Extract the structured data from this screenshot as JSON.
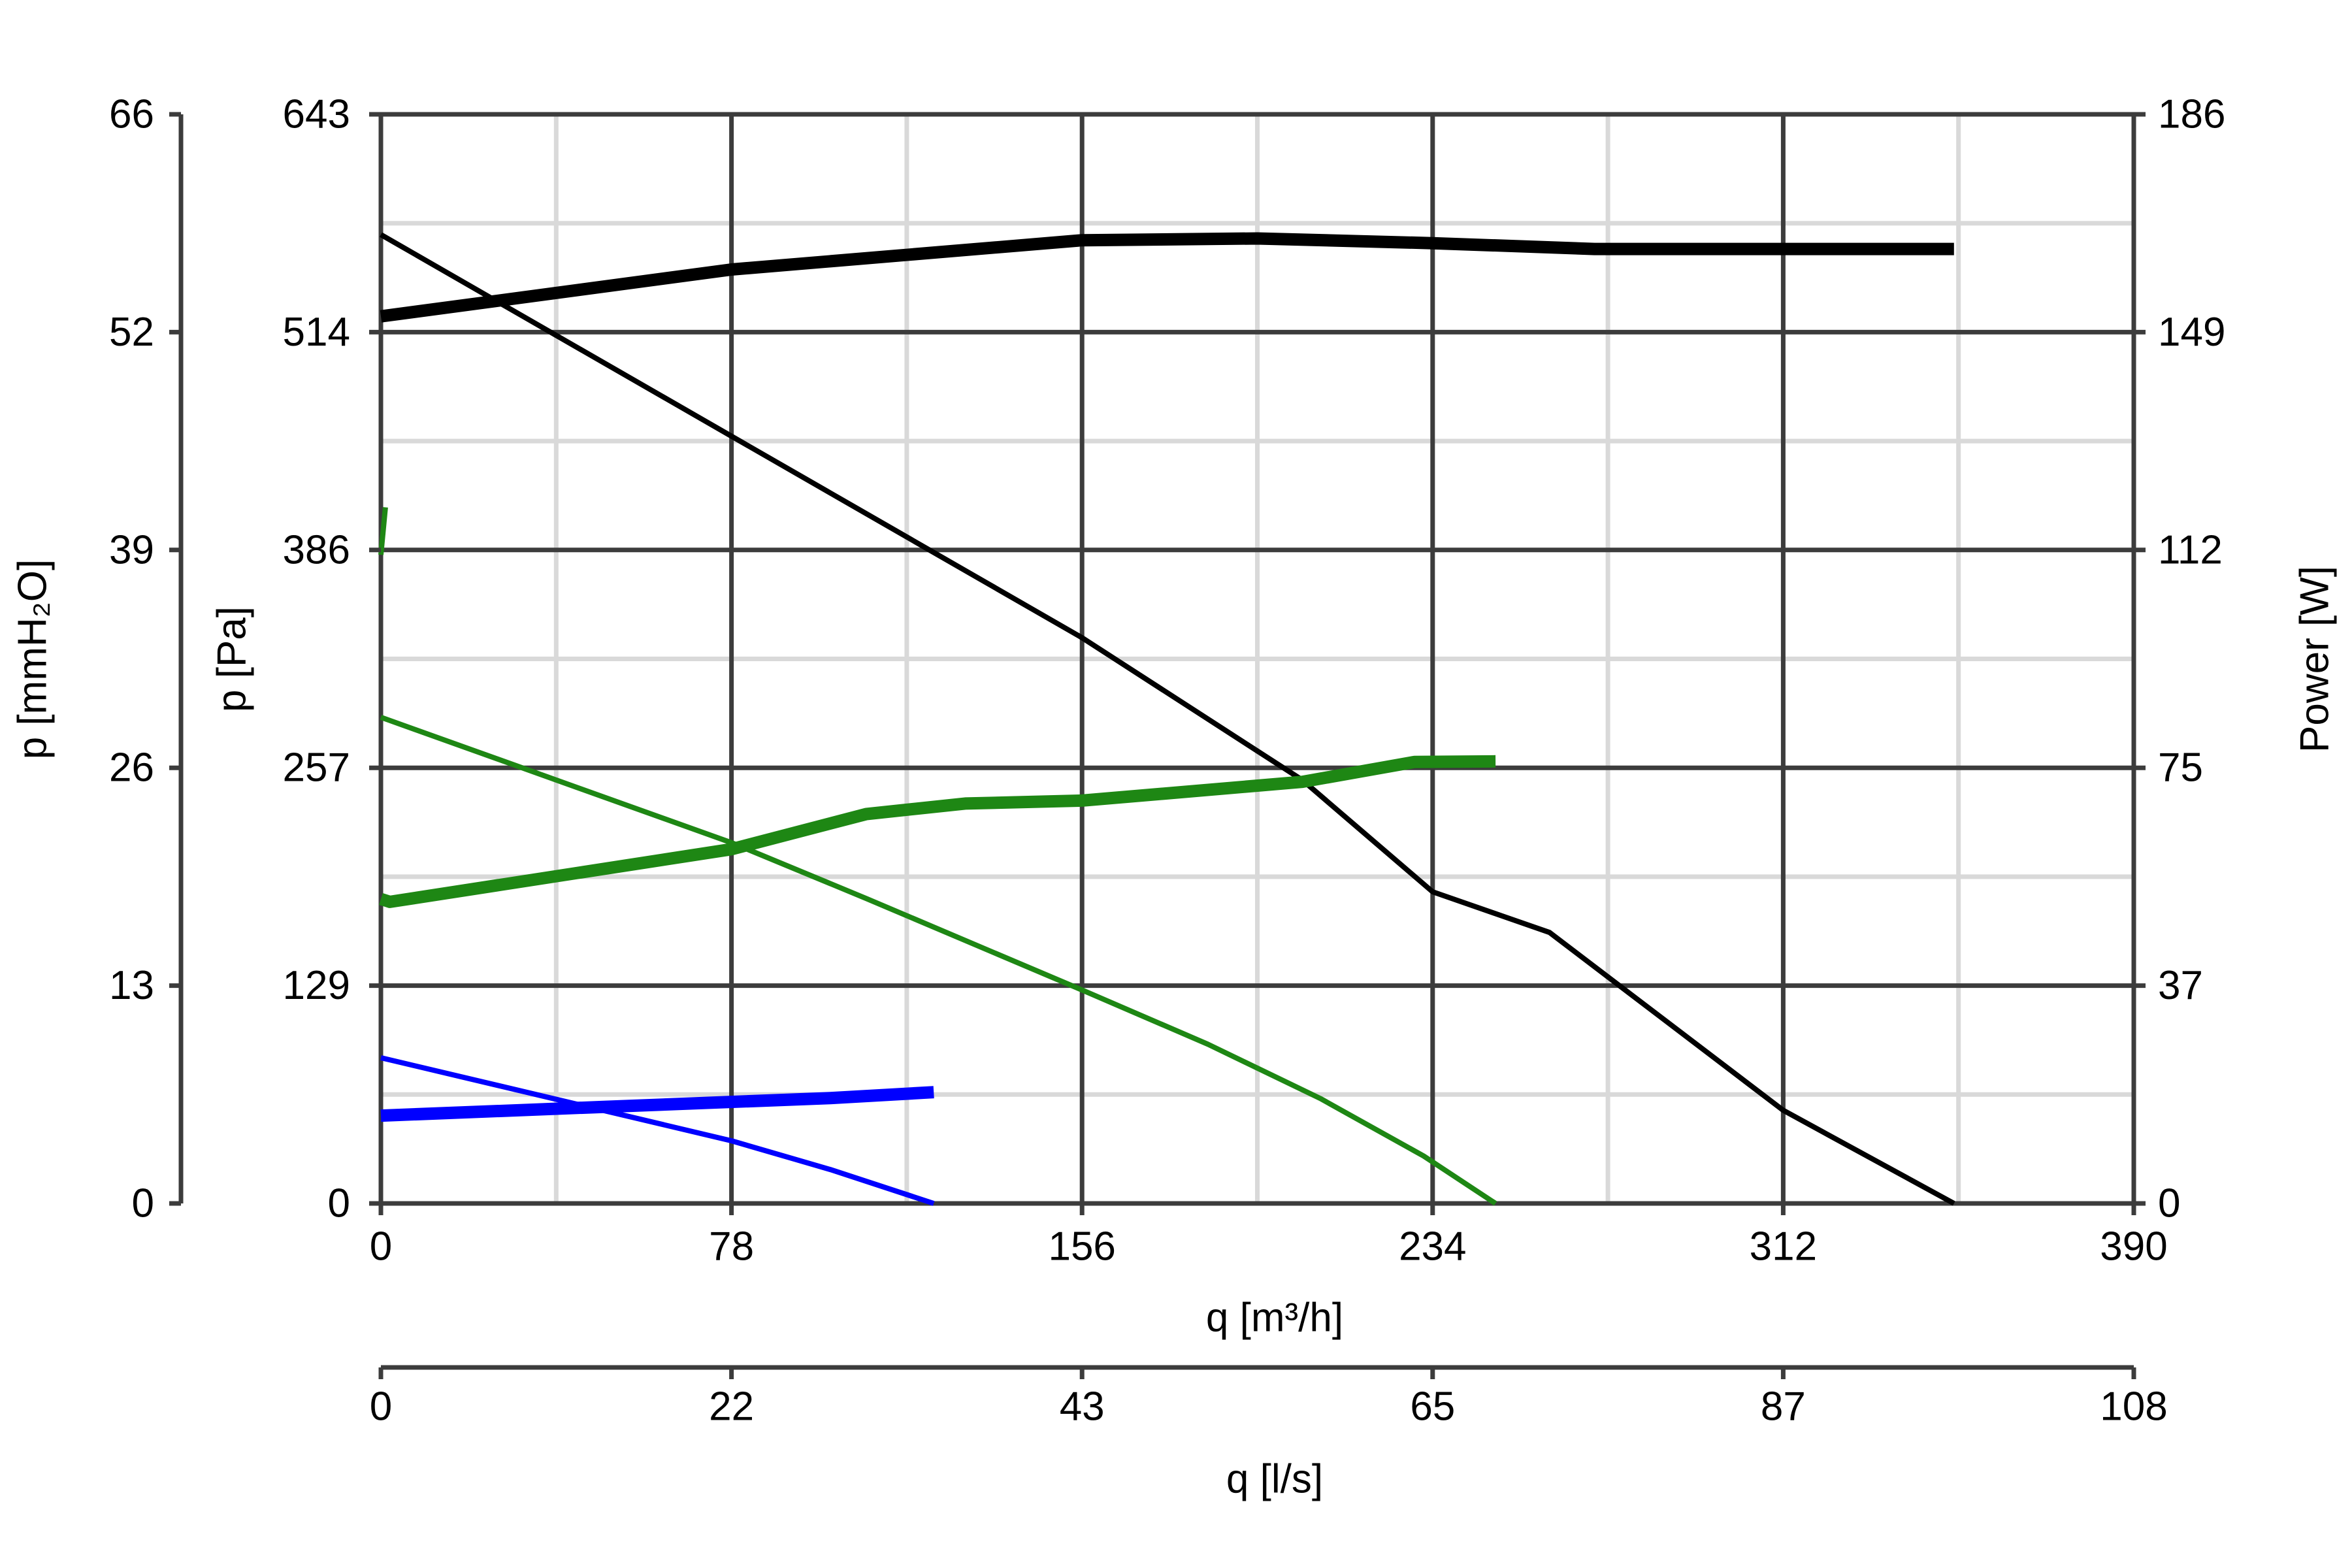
{
  "chart_data": {
    "type": "line",
    "axes": {
      "x_primary": {
        "label": "q [m³/h]",
        "range": [
          0,
          390
        ],
        "ticks": [
          "0",
          "78",
          "156",
          "234",
          "312",
          "390"
        ]
      },
      "x_secondary": {
        "label": "q [l/s]",
        "range": [
          0,
          108
        ],
        "ticks": [
          "0",
          "22",
          "43",
          "65",
          "87",
          "108"
        ]
      },
      "y_primary": {
        "label": "p [Pa]",
        "range": [
          0,
          643
        ],
        "ticks": [
          "0",
          "129",
          "257",
          "386",
          "514",
          "643"
        ]
      },
      "y_secondary_left": {
        "label": "p [mmH₂O]",
        "range": [
          0,
          66
        ],
        "ticks": [
          "0",
          "13",
          "26",
          "39",
          "52",
          "66"
        ]
      },
      "y_right": {
        "label": "Power [W]",
        "range": [
          0,
          186
        ],
        "ticks": [
          "0",
          "37",
          "75",
          "112",
          "149",
          "186"
        ]
      }
    },
    "grid": true,
    "series": [
      {
        "style": "thin",
        "color": "#000000",
        "axis": "pressure",
        "points": [
          [
            0,
            572
          ],
          [
            78,
            453
          ],
          [
            156,
            334
          ],
          [
            205,
            250
          ],
          [
            234,
            184
          ],
          [
            260,
            160
          ],
          [
            312,
            55
          ],
          [
            350,
            0
          ]
        ]
      },
      {
        "style": "thick",
        "color": "#000000",
        "axis": "power",
        "points": [
          [
            0,
            151.5
          ],
          [
            78,
            159.5
          ],
          [
            156,
            164.5
          ],
          [
            195,
            164.8
          ],
          [
            234,
            164
          ],
          [
            270,
            163
          ],
          [
            350,
            163
          ]
        ]
      },
      {
        "style": "thin",
        "color": "#1e8714",
        "axis": "pressure",
        "points": [
          [
            0,
            287
          ],
          [
            78,
            213
          ],
          [
            108,
            180
          ],
          [
            156,
            126
          ],
          [
            184,
            94
          ],
          [
            209,
            62
          ],
          [
            232,
            28
          ],
          [
            248,
            0
          ]
        ]
      },
      {
        "style": "thick",
        "color": "#1e8714",
        "axis": "power",
        "points": [
          [
            0,
            52
          ],
          [
            2,
            51.5
          ],
          [
            78,
            60.5
          ],
          [
            108,
            66.5
          ],
          [
            130,
            68.3
          ],
          [
            156,
            68.8
          ],
          [
            205,
            72
          ],
          [
            230,
            75.4
          ],
          [
            248,
            75.5
          ]
        ]
      },
      {
        "style": "thin",
        "color": "#1e8714",
        "axis": "pressure",
        "points": [
          [
            0,
            383
          ],
          [
            1,
            411
          ]
        ]
      },
      {
        "style": "thin",
        "color": "#0000ff",
        "axis": "pressure",
        "points": [
          [
            0,
            86
          ],
          [
            78,
            37
          ],
          [
            100,
            20
          ],
          [
            123,
            0
          ]
        ]
      },
      {
        "style": "thick",
        "color": "#0000ff",
        "axis": "power",
        "points": [
          [
            0,
            15
          ],
          [
            50,
            16.5
          ],
          [
            100,
            18
          ],
          [
            123,
            19
          ]
        ]
      }
    ]
  }
}
